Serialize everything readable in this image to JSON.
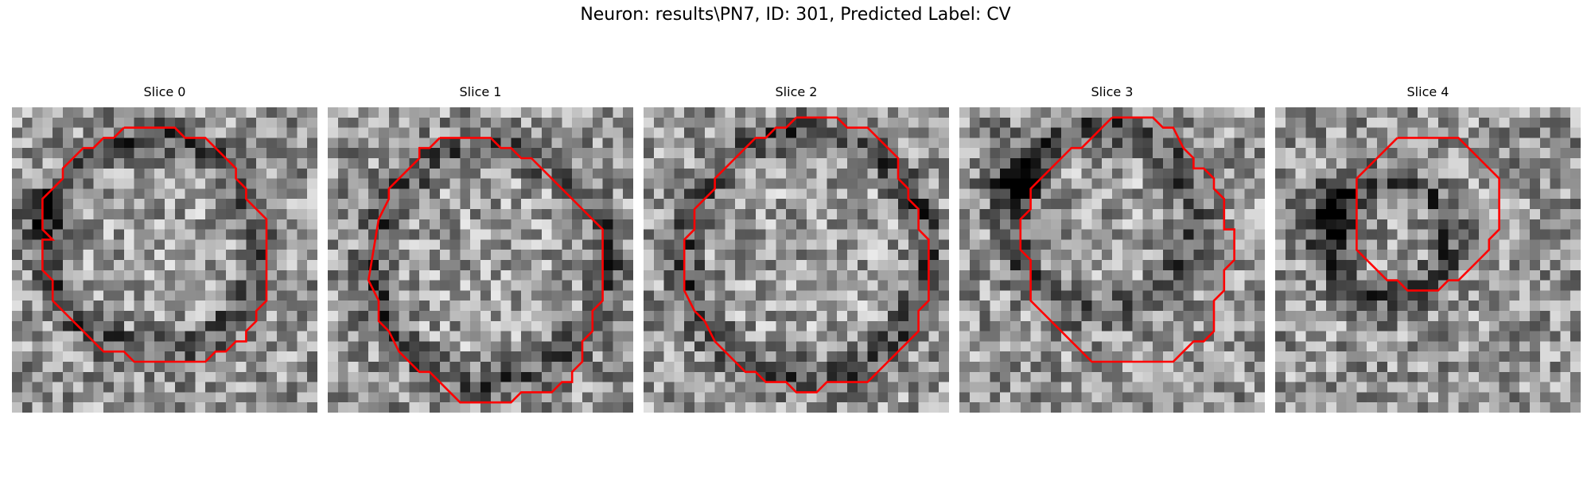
{
  "figure": {
    "title": "Neuron: results\\PN7, ID: 301, Predicted Label: CV",
    "contour_color": "#ff0000",
    "colormap": "gray",
    "grid_size": 30
  },
  "slices": [
    {
      "title": "Slice 0",
      "contour": [
        [
          11,
          2
        ],
        [
          16,
          2
        ],
        [
          17,
          3
        ],
        [
          19,
          3
        ],
        [
          20,
          4
        ],
        [
          21,
          5
        ],
        [
          22,
          6
        ],
        [
          22,
          7
        ],
        [
          23,
          8
        ],
        [
          23,
          9
        ],
        [
          24,
          10
        ],
        [
          25,
          11
        ],
        [
          25,
          19
        ],
        [
          24,
          20
        ],
        [
          24,
          21
        ],
        [
          23,
          22
        ],
        [
          23,
          23
        ],
        [
          22,
          23
        ],
        [
          21,
          24
        ],
        [
          20,
          24
        ],
        [
          19,
          25
        ],
        [
          12,
          25
        ],
        [
          11,
          24
        ],
        [
          9,
          24
        ],
        [
          8,
          23
        ],
        [
          7,
          22
        ],
        [
          6,
          21
        ],
        [
          5,
          20
        ],
        [
          4,
          19
        ],
        [
          4,
          17
        ],
        [
          3,
          16
        ],
        [
          3,
          13
        ],
        [
          3,
          14
        ],
        [
          3,
          13
        ],
        [
          4,
          13
        ],
        [
          3,
          12
        ],
        [
          3,
          9
        ],
        [
          4,
          8
        ],
        [
          5,
          7
        ],
        [
          5,
          6
        ],
        [
          6,
          5
        ],
        [
          7,
          4
        ],
        [
          8,
          4
        ],
        [
          9,
          3
        ],
        [
          10,
          3
        ],
        [
          11,
          2
        ]
      ]
    },
    {
      "title": "Slice 1",
      "contour": [
        [
          11,
          3
        ],
        [
          16,
          3
        ],
        [
          17,
          4
        ],
        [
          18,
          4
        ],
        [
          19,
          5
        ],
        [
          20,
          5
        ],
        [
          21,
          6
        ],
        [
          22,
          7
        ],
        [
          23,
          8
        ],
        [
          24,
          9
        ],
        [
          25,
          10
        ],
        [
          26,
          11
        ],
        [
          27,
          12
        ],
        [
          27,
          19
        ],
        [
          26,
          20
        ],
        [
          26,
          22
        ],
        [
          25,
          23
        ],
        [
          25,
          25
        ],
        [
          24,
          26
        ],
        [
          24,
          27
        ],
        [
          23,
          27
        ],
        [
          22,
          28
        ],
        [
          19,
          28
        ],
        [
          18,
          29
        ],
        [
          13,
          29
        ],
        [
          12,
          28
        ],
        [
          11,
          27
        ],
        [
          10,
          26
        ],
        [
          9,
          26
        ],
        [
          8,
          25
        ],
        [
          7,
          24
        ],
        [
          6,
          22
        ],
        [
          5,
          21
        ],
        [
          5,
          19
        ],
        [
          4,
          17
        ],
        [
          5,
          11
        ],
        [
          6,
          9
        ],
        [
          6,
          8
        ],
        [
          7,
          7
        ],
        [
          8,
          6
        ],
        [
          9,
          5
        ],
        [
          9,
          4
        ],
        [
          10,
          4
        ],
        [
          11,
          3
        ]
      ]
    },
    {
      "title": "Slice 2",
      "contour": [
        [
          15,
          1
        ],
        [
          19,
          1
        ],
        [
          20,
          2
        ],
        [
          22,
          2
        ],
        [
          23,
          3
        ],
        [
          24,
          4
        ],
        [
          25,
          5
        ],
        [
          25,
          7
        ],
        [
          26,
          8
        ],
        [
          26,
          9
        ],
        [
          27,
          10
        ],
        [
          27,
          12
        ],
        [
          28,
          13
        ],
        [
          28,
          19
        ],
        [
          27,
          20
        ],
        [
          27,
          22
        ],
        [
          26,
          23
        ],
        [
          25,
          24
        ],
        [
          24,
          25
        ],
        [
          23,
          26
        ],
        [
          22,
          27
        ],
        [
          18,
          27
        ],
        [
          17,
          28
        ],
        [
          15,
          28
        ],
        [
          14,
          27
        ],
        [
          12,
          27
        ],
        [
          11,
          26
        ],
        [
          10,
          26
        ],
        [
          9,
          25
        ],
        [
          8,
          24
        ],
        [
          7,
          23
        ],
        [
          6,
          21
        ],
        [
          5,
          20
        ],
        [
          4,
          18
        ],
        [
          4,
          13
        ],
        [
          5,
          12
        ],
        [
          5,
          10
        ],
        [
          6,
          9
        ],
        [
          7,
          8
        ],
        [
          7,
          7
        ],
        [
          8,
          6
        ],
        [
          9,
          5
        ],
        [
          10,
          4
        ],
        [
          11,
          3
        ],
        [
          12,
          3
        ],
        [
          13,
          2
        ],
        [
          14,
          2
        ],
        [
          15,
          1
        ]
      ]
    },
    {
      "title": "Slice 3",
      "contour": [
        [
          15,
          1
        ],
        [
          19,
          1
        ],
        [
          20,
          2
        ],
        [
          21,
          2
        ],
        [
          22,
          4
        ],
        [
          23,
          5
        ],
        [
          23,
          6
        ],
        [
          24,
          6
        ],
        [
          25,
          7
        ],
        [
          25,
          8
        ],
        [
          26,
          9
        ],
        [
          26,
          11
        ],
        [
          26,
          12
        ],
        [
          27,
          12
        ],
        [
          27,
          15
        ],
        [
          26,
          16
        ],
        [
          26,
          18
        ],
        [
          25,
          19
        ],
        [
          25,
          22
        ],
        [
          24,
          23
        ],
        [
          23,
          23
        ],
        [
          22,
          24
        ],
        [
          21,
          25
        ],
        [
          13,
          25
        ],
        [
          12,
          24
        ],
        [
          11,
          23
        ],
        [
          10,
          22
        ],
        [
          9,
          21
        ],
        [
          8,
          20
        ],
        [
          7,
          19
        ],
        [
          7,
          15
        ],
        [
          6,
          14
        ],
        [
          6,
          11
        ],
        [
          7,
          10
        ],
        [
          7,
          8
        ],
        [
          8,
          7
        ],
        [
          9,
          6
        ],
        [
          10,
          5
        ],
        [
          11,
          4
        ],
        [
          12,
          4
        ],
        [
          13,
          3
        ],
        [
          14,
          2
        ],
        [
          15,
          1
        ]
      ]
    },
    {
      "title": "Slice 4",
      "contour": [
        [
          12,
          3
        ],
        [
          18,
          3
        ],
        [
          19,
          4
        ],
        [
          20,
          5
        ],
        [
          21,
          6
        ],
        [
          22,
          7
        ],
        [
          22,
          12
        ],
        [
          21,
          13
        ],
        [
          21,
          14
        ],
        [
          20,
          15
        ],
        [
          19,
          16
        ],
        [
          18,
          17
        ],
        [
          17,
          17
        ],
        [
          16,
          18
        ],
        [
          13,
          18
        ],
        [
          12,
          17
        ],
        [
          11,
          17
        ],
        [
          10,
          16
        ],
        [
          9,
          15
        ],
        [
          8,
          14
        ],
        [
          8,
          7
        ],
        [
          9,
          6
        ],
        [
          10,
          5
        ],
        [
          11,
          4
        ],
        [
          11,
          4
        ],
        [
          12,
          3
        ]
      ]
    }
  ]
}
